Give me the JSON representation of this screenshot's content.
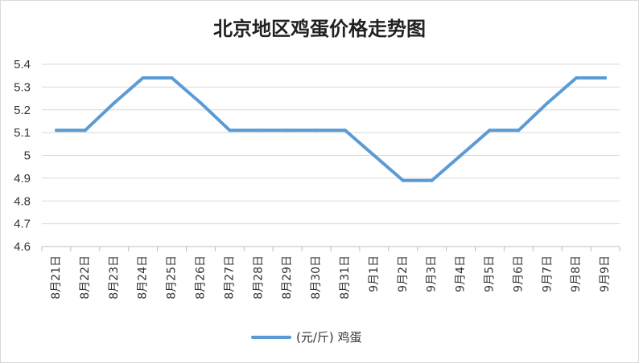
{
  "chart_data": {
    "type": "line",
    "title": "北京地区鸡蛋价格走势图",
    "categories": [
      "8月21日",
      "8月22日",
      "8月23日",
      "8月24日",
      "8月25日",
      "8月26日",
      "8月27日",
      "8月28日",
      "8月29日",
      "8月30日",
      "8月31日",
      "9月1日",
      "9月2日",
      "9月3日",
      "9月4日",
      "9月5日",
      "9月6日",
      "9月7日",
      "9月8日",
      "9月9日"
    ],
    "series": [
      {
        "name": "(元/斤) 鸡蛋",
        "color": "#5b9bd5",
        "values": [
          5.11,
          5.11,
          5.23,
          5.34,
          5.34,
          5.23,
          5.11,
          5.11,
          5.11,
          5.11,
          5.11,
          5.0,
          4.89,
          4.89,
          5.0,
          5.11,
          5.11,
          5.23,
          5.34,
          5.34
        ]
      }
    ],
    "ylim": [
      4.6,
      5.4
    ],
    "yticks": [
      "4.6",
      "4.7",
      "4.8",
      "4.9",
      "5",
      "5.1",
      "5.2",
      "5.3",
      "5.4"
    ],
    "xlabel": "",
    "ylabel": "",
    "grid": "horizontal",
    "legend_position": "bottom-center"
  }
}
